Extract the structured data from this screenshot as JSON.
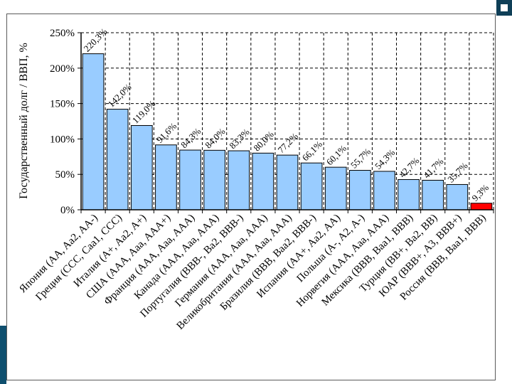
{
  "chart_data": {
    "type": "bar",
    "ylabel": "Государственный долг / ВВП, %",
    "ylim": [
      0,
      250
    ],
    "y_ticks": [
      "0%",
      "50%",
      "100%",
      "150%",
      "200%",
      "250%"
    ],
    "grid": true,
    "categories": [
      "Япония (AA, Aa2, AA-)",
      "Греция (CCC, Caa1, CCC)",
      "Италия (A+, Aa2, A+)",
      "США (AAA, Aaa, AAA+)",
      "Франция (AAA, Aaa, AAA)",
      "Канада (AAA, Aaa, AAA)",
      "Португалия (BBB-, Ba2, BBB-)",
      "Германия (AAA, Aaa, AAA)",
      "Великобритания (AAA, Aaa, AAA)",
      "Бразилия (BBB, Baa2, BBB-)",
      "Испания (AA+, Aa2, AA)",
      "Польша (A-, A2, A-)",
      "Норвегия (AAA, Aaa, AAA)",
      "Мексика (BBB, Baa1, BBB)",
      "Турция (BB+, Ba2, BB)",
      "ЮАР (BBB+, A3, BBB+)",
      "Россия (BBB, Baa1, BBB)"
    ],
    "values": [
      220.3,
      142.0,
      119.0,
      91.6,
      84.3,
      84.0,
      83.3,
      80.0,
      77.2,
      66.1,
      60.1,
      55.7,
      54.3,
      42.7,
      41.7,
      35.7,
      9.3
    ],
    "value_labels": [
      "220,3%",
      "142,0%",
      "119,0%",
      "91,6%",
      "84,3%",
      "84,0%",
      "83,3%",
      "80,0%",
      "77,2%",
      "66,1%",
      "60,1%",
      "55,7%",
      "54,3%",
      "42,7%",
      "41,7%",
      "35,7%",
      "9,3%"
    ],
    "colors": {
      "default": "#99ccff",
      "highlight": "#ff0000",
      "highlight_index": 16
    }
  }
}
